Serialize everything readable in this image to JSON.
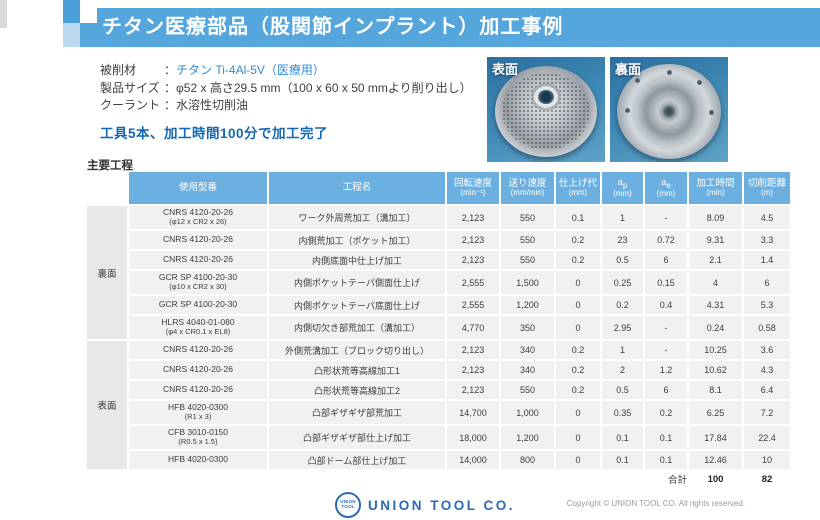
{
  "title": "チタン医療部品（股関節インプラント）加工事例",
  "colon": "：",
  "specs": [
    {
      "label": "被削材",
      "value": "チタン Ti-4Al-5V（医療用）"
    },
    {
      "label": "製品サイズ",
      "value": "φ52 x 高さ29.5 mm（100 x 60 x 50 mmより削り出し）"
    },
    {
      "label": "クーラント",
      "value": "水溶性切削油"
    }
  ],
  "statement": "工具5本、加工時間100分で加工完了",
  "photos": [
    {
      "label": "表面"
    },
    {
      "label": "裏面"
    }
  ],
  "table": {
    "section_title": "主要工程",
    "headers": [
      {
        "t": "使用型番"
      },
      {
        "t": "工程名"
      },
      {
        "t": "回転速度",
        "u": "(min⁻¹)"
      },
      {
        "t": "送り速度",
        "u": "(mm/min)"
      },
      {
        "t": "仕上げ代",
        "u": "(mm)"
      },
      {
        "t": "a",
        "sub": "p",
        "u": "(mm)"
      },
      {
        "t": "a",
        "sub": "e",
        "u": "(mm)"
      },
      {
        "t": "加工時間",
        "u": "(min)"
      },
      {
        "t": "切削距離",
        "u": "(m)"
      }
    ],
    "groups": [
      {
        "label": "裏面",
        "span": 6
      },
      {
        "label": "表面",
        "span": 6
      }
    ],
    "rows": [
      {
        "group": 0,
        "model": "CNRS 4120-20-26",
        "model2": "(φ12 x CR2 x 26)",
        "process": "ワーク外周荒加工（溝加工）",
        "values": [
          "2,123",
          "550",
          "0.1",
          "1",
          "-",
          "8.09",
          "4.5"
        ]
      },
      {
        "group": 0,
        "model": "CNRS 4120-20-26",
        "model2": "",
        "process": "内側荒加工（ポケット加工）",
        "values": [
          "2,123",
          "550",
          "0.2",
          "23",
          "0.72",
          "9.31",
          "3.3"
        ]
      },
      {
        "group": 0,
        "model": "CNRS 4120-20-26",
        "model2": "",
        "process": "内側底面中仕上げ加工",
        "values": [
          "2,123",
          "550",
          "0.2",
          "0.5",
          "6",
          "2.1",
          "1.4"
        ]
      },
      {
        "group": 0,
        "model": "GCR SP 4100-20-30",
        "model2": "(φ10 x CR2 x 30)",
        "process": "内側ポケットテーパ側面仕上げ",
        "values": [
          "2,555",
          "1,500",
          "0",
          "0.25",
          "0.15",
          "4",
          "6"
        ]
      },
      {
        "group": 0,
        "model": "GCR SP 4100-20-30",
        "model2": "",
        "process": "内側ポケットテーパ底面仕上げ",
        "values": [
          "2,555",
          "1,200",
          "0",
          "0.2",
          "0.4",
          "4.31",
          "5.3"
        ]
      },
      {
        "group": 0,
        "model": "HLRS 4040-01-080",
        "model2": "(φ4 x CR0.1 x EL8)",
        "process": "内側切欠き部荒加工（溝加工）",
        "values": [
          "4,770",
          "350",
          "0",
          "2.95",
          "-",
          "0.24",
          "0.58"
        ]
      },
      {
        "group": 1,
        "model": "CNRS 4120-20-26",
        "model2": "",
        "process": "外側荒溝加工（ブロック切り出し）",
        "values": [
          "2,123",
          "340",
          "0.2",
          "1",
          "-",
          "10.25",
          "3.6"
        ]
      },
      {
        "group": 1,
        "model": "CNRS 4120-20-26",
        "model2": "",
        "process": "凸形状荒等高線加工1",
        "values": [
          "2,123",
          "340",
          "0.2",
          "2",
          "1.2",
          "10.62",
          "4.3"
        ]
      },
      {
        "group": 1,
        "model": "CNRS 4120-20-26",
        "model2": "",
        "process": "凸形状荒等高線加工2",
        "values": [
          "2,123",
          "550",
          "0.2",
          "0.5",
          "6",
          "8.1",
          "6.4"
        ]
      },
      {
        "group": 1,
        "model": "HFB 4020-0300",
        "model2": "(R1 x 3)",
        "process": "凸部ギザギザ部荒加工",
        "values": [
          "14,700",
          "1,000",
          "0",
          "0.35",
          "0.2",
          "6.25",
          "7.2"
        ]
      },
      {
        "group": 1,
        "model": "CFB 3010-0150",
        "model2": "(R0.5 x 1.5)",
        "process": "凸部ギザギザ部仕上げ加工",
        "values": [
          "18,000",
          "1,200",
          "0",
          "0.1",
          "0.1",
          "17.84",
          "22.4"
        ]
      },
      {
        "group": 1,
        "model": "HFB 4020-0300",
        "model2": "",
        "process": "凸部ドーム部仕上げ加工",
        "values": [
          "14,000",
          "800",
          "0",
          "0.1",
          "0.1",
          "12.46",
          "10"
        ]
      }
    ],
    "total": {
      "label": "合計",
      "time": "100",
      "distance": "82"
    }
  },
  "footer": {
    "logo_mark_line1": "UNION",
    "logo_mark_line2": "TOOL",
    "logo_text": "UNION TOOL CO.",
    "copyright": "Copyright © UNION TOOL CO. All rights reserved."
  },
  "colors": {
    "title_bar": "#55a6dc",
    "table_header": "#6cb0e2",
    "accent_blue": "#2f8ed5",
    "statement_blue": "#1467b2",
    "logo_blue": "#2b6bb3"
  }
}
